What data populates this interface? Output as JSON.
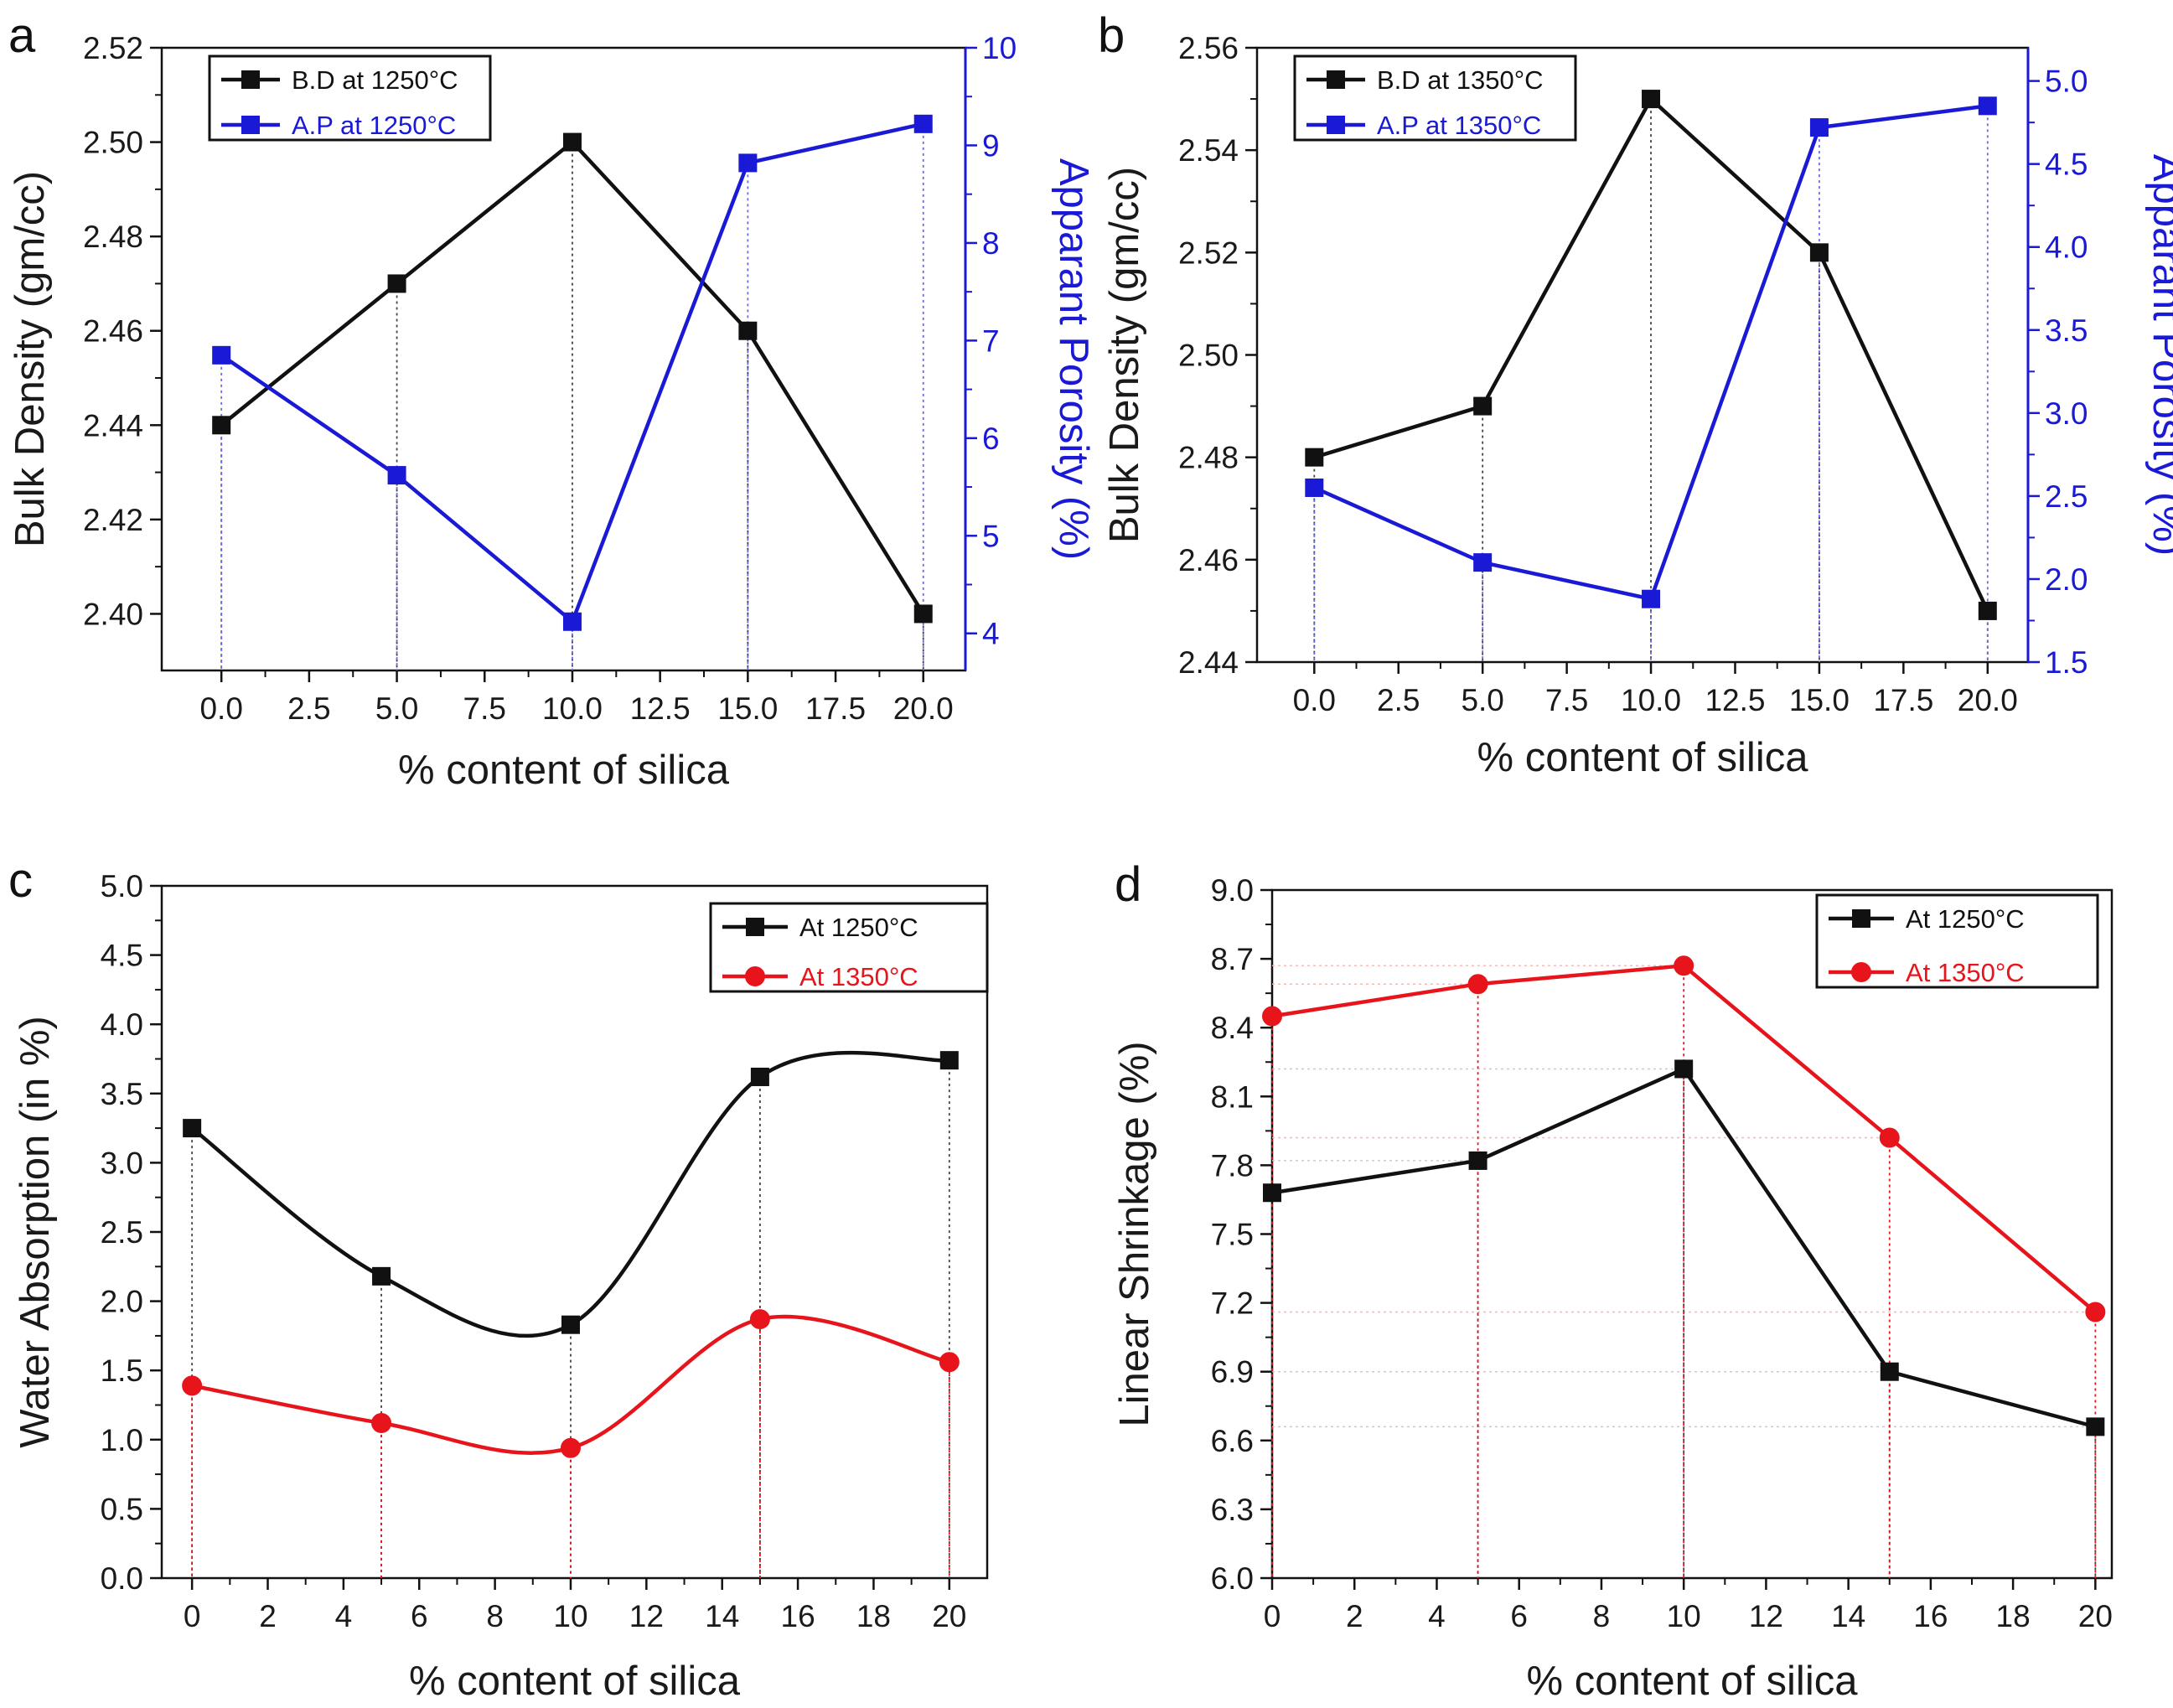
{
  "chart_data": [
    {
      "panel": "a",
      "type": "line",
      "xlabel": "% content of silica",
      "ylabel": "Bulk Density (gm/cc)",
      "y2label": "Apparant Porosity (%)",
      "xlim": [
        -1.7,
        21.2
      ],
      "ylim": [
        2.388,
        2.52
      ],
      "y2lim": [
        3.62,
        10
      ],
      "xticks": [
        "0.0",
        "2.5",
        "5.0",
        "7.5",
        "10.0",
        "12.5",
        "15.0",
        "17.5",
        "20.0"
      ],
      "xtick_values": [
        0,
        2.5,
        5,
        7.5,
        10,
        12.5,
        15,
        17.5,
        20
      ],
      "yticks": [
        "2.40",
        "2.42",
        "2.44",
        "2.46",
        "2.48",
        "2.50",
        "2.52"
      ],
      "ytick_values": [
        2.4,
        2.42,
        2.44,
        2.46,
        2.48,
        2.5,
        2.52
      ],
      "y2ticks": [
        "4",
        "5",
        "6",
        "7",
        "8",
        "9",
        "10"
      ],
      "y2tick_values": [
        4,
        5,
        6,
        7,
        8,
        9,
        10
      ],
      "legend_position": "top-left",
      "series": [
        {
          "name": "B.D at 1250°C",
          "axis": "left",
          "color": "#111111",
          "marker": "square",
          "smooth": false,
          "x": [
            0,
            5,
            10,
            15,
            20
          ],
          "values": [
            2.44,
            2.47,
            2.5,
            2.46,
            2.4
          ]
        },
        {
          "name": "A.P at 1250°C",
          "axis": "right",
          "color": "#1a1ad6",
          "marker": "square",
          "smooth": false,
          "x": [
            0,
            5,
            10,
            15,
            20
          ],
          "values": [
            6.85,
            5.62,
            4.12,
            8.82,
            9.22
          ]
        }
      ]
    },
    {
      "panel": "b",
      "type": "line",
      "xlabel": "% content of silica",
      "ylabel": "Bulk Density (gm/cc)",
      "y2label": "Apparant Porosity (%)",
      "xlim": [
        -1.7,
        21.2
      ],
      "ylim": [
        2.44,
        2.56
      ],
      "y2lim": [
        1.5,
        5.2
      ],
      "xticks": [
        "0.0",
        "2.5",
        "5.0",
        "7.5",
        "10.0",
        "12.5",
        "15.0",
        "17.5",
        "20.0"
      ],
      "xtick_values": [
        0,
        2.5,
        5,
        7.5,
        10,
        12.5,
        15,
        17.5,
        20
      ],
      "yticks": [
        "2.44",
        "2.46",
        "2.48",
        "2.50",
        "2.52",
        "2.54",
        "2.56"
      ],
      "ytick_values": [
        2.44,
        2.46,
        2.48,
        2.5,
        2.52,
        2.54,
        2.56
      ],
      "y2ticks": [
        "1.5",
        "2.0",
        "2.5",
        "3.0",
        "3.5",
        "4.0",
        "4.5",
        "5.0"
      ],
      "y2tick_values": [
        1.5,
        2.0,
        2.5,
        3.0,
        3.5,
        4.0,
        4.5,
        5.0
      ],
      "legend_position": "top-left",
      "series": [
        {
          "name": "B.D at 1350°C",
          "axis": "left",
          "color": "#111111",
          "marker": "square",
          "smooth": false,
          "x": [
            0,
            5,
            10,
            15,
            20
          ],
          "values": [
            2.48,
            2.49,
            2.55,
            2.52,
            2.45
          ]
        },
        {
          "name": "A.P at 1350°C",
          "axis": "right",
          "color": "#1a1ad6",
          "marker": "square",
          "smooth": false,
          "x": [
            0,
            5,
            10,
            15,
            20
          ],
          "values": [
            2.55,
            2.1,
            1.88,
            4.72,
            4.85
          ]
        }
      ]
    },
    {
      "panel": "c",
      "type": "line",
      "xlabel": "% content of silica",
      "ylabel": "Water Absorption (in %)",
      "xlim": [
        -0.8,
        21
      ],
      "ylim": [
        0,
        5.0
      ],
      "xticks": [
        "0",
        "2",
        "4",
        "6",
        "8",
        "10",
        "12",
        "14",
        "16",
        "18",
        "20"
      ],
      "xtick_values": [
        0,
        2,
        4,
        6,
        8,
        10,
        12,
        14,
        16,
        18,
        20
      ],
      "yticks": [
        "0.0",
        "0.5",
        "1.0",
        "1.5",
        "2.0",
        "2.5",
        "3.0",
        "3.5",
        "4.0",
        "4.5",
        "5.0"
      ],
      "ytick_values": [
        0,
        0.5,
        1.0,
        1.5,
        2.0,
        2.5,
        3.0,
        3.5,
        4.0,
        4.5,
        5.0
      ],
      "legend_position": "top-right",
      "series": [
        {
          "name": "At 1250°C",
          "color": "#111111",
          "marker": "square",
          "smooth": true,
          "x": [
            0,
            5,
            10,
            15,
            20
          ],
          "values": [
            3.25,
            2.18,
            1.83,
            3.62,
            3.74
          ]
        },
        {
          "name": "At 1350°C",
          "color": "#e8141b",
          "marker": "circle",
          "smooth": true,
          "x": [
            0,
            5,
            10,
            15,
            20
          ],
          "values": [
            1.39,
            1.12,
            0.94,
            1.87,
            1.56
          ]
        }
      ]
    },
    {
      "panel": "d",
      "type": "line",
      "xlabel": "% content of silica",
      "ylabel": "Linear Shrinkage (%)",
      "xlim": [
        0,
        20.4
      ],
      "ylim": [
        6.0,
        9.0
      ],
      "xticks": [
        "0",
        "2",
        "4",
        "6",
        "8",
        "10",
        "12",
        "14",
        "16",
        "18",
        "20"
      ],
      "xtick_values": [
        0,
        2,
        4,
        6,
        8,
        10,
        12,
        14,
        16,
        18,
        20
      ],
      "yticks": [
        "6.0",
        "6.3",
        "6.6",
        "6.9",
        "7.2",
        "7.5",
        "7.8",
        "8.1",
        "8.4",
        "8.7",
        "9.0"
      ],
      "ytick_values": [
        6.0,
        6.3,
        6.6,
        6.9,
        7.2,
        7.5,
        7.8,
        8.1,
        8.4,
        8.7,
        9.0
      ],
      "legend_position": "top-right",
      "series": [
        {
          "name": "At 1250°C",
          "color": "#111111",
          "marker": "square",
          "smooth": false,
          "x": [
            0,
            5,
            10,
            15,
            20
          ],
          "values": [
            7.68,
            7.82,
            8.22,
            6.9,
            6.66
          ]
        },
        {
          "name": "At 1350°C",
          "color": "#e8141b",
          "marker": "circle",
          "smooth": false,
          "x": [
            0,
            5,
            10,
            15,
            20
          ],
          "values": [
            8.45,
            8.59,
            8.67,
            7.92,
            7.16
          ]
        }
      ]
    }
  ]
}
